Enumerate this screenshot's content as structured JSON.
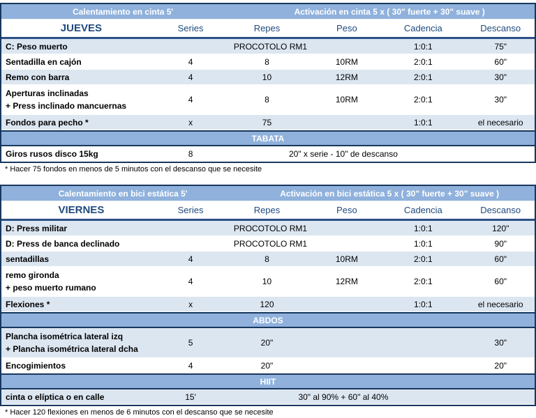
{
  "colors": {
    "band_blue": "#8fb1dc",
    "row_stripe": "#dce6f1",
    "header_text_blue": "#1f497d",
    "border_dark_navy": "#17375d"
  },
  "columns": [
    "Series",
    "Repes",
    "Peso",
    "Cadencia",
    "Descanso"
  ],
  "tables": [
    {
      "warmup": "Calentamiento en cinta 5'",
      "activation": "Activación en cinta 5 x ( 30\" fuerte + 30\" suave )",
      "day": "JUEVES",
      "rows": [
        {
          "name": [
            "C: Peso muerto"
          ],
          "stripe": true,
          "cells": [
            {
              "span": 3,
              "text": "PROCOTOLO RM1"
            },
            {
              "span": 1,
              "text": "1:0:1"
            },
            {
              "span": 1,
              "text": "75\""
            }
          ]
        },
        {
          "name": [
            "Sentadilla en cajón"
          ],
          "stripe": false,
          "cells": [
            {
              "span": 1,
              "text": "4"
            },
            {
              "span": 1,
              "text": "8"
            },
            {
              "span": 1,
              "text": "10RM"
            },
            {
              "span": 1,
              "text": "2:0:1"
            },
            {
              "span": 1,
              "text": "60\""
            }
          ]
        },
        {
          "name": [
            "Remo con barra"
          ],
          "stripe": true,
          "cells": [
            {
              "span": 1,
              "text": "4"
            },
            {
              "span": 1,
              "text": "10"
            },
            {
              "span": 1,
              "text": "12RM"
            },
            {
              "span": 1,
              "text": "2:0:1"
            },
            {
              "span": 1,
              "text": "30\""
            }
          ]
        },
        {
          "name": [
            "Aperturas inclinadas",
            "+ Press inclinado mancuernas"
          ],
          "stripe": false,
          "tall": true,
          "cells": [
            {
              "span": 1,
              "text": "4"
            },
            {
              "span": 1,
              "text": "8"
            },
            {
              "span": 1,
              "text": "10RM"
            },
            {
              "span": 1,
              "text": "2:0:1"
            },
            {
              "span": 1,
              "text": "30\""
            }
          ]
        },
        {
          "name": [
            "Fondos para pecho *"
          ],
          "stripe": true,
          "cells": [
            {
              "span": 1,
              "text": "x"
            },
            {
              "span": 1,
              "text": "75"
            },
            {
              "span": 1,
              "text": ""
            },
            {
              "span": 1,
              "text": "1:0:1"
            },
            {
              "span": 1,
              "text": "el necesario"
            }
          ]
        },
        {
          "band": "TABATA"
        },
        {
          "name": [
            "Giros rusos disco 15kg"
          ],
          "stripe": false,
          "cells": [
            {
              "span": 1,
              "text": "8"
            },
            {
              "span": 3,
              "text": "20\" x serie - 10\" de descanso"
            },
            {
              "span": 1,
              "text": ""
            }
          ]
        }
      ],
      "footnote": "* Hacer 75 fondos en menos de 5 minutos con el descanso que se necesite"
    },
    {
      "warmup": "Calentamiento en bici estática 5'",
      "activation": "Activación en bici estática 5 x ( 30\" fuerte + 30\" suave )",
      "day": "VIERNES",
      "rows": [
        {
          "name": [
            "D: Press militar"
          ],
          "stripe": true,
          "cells": [
            {
              "span": 3,
              "text": "PROCOTOLO RM1"
            },
            {
              "span": 1,
              "text": "1:0:1"
            },
            {
              "span": 1,
              "text": "120\""
            }
          ]
        },
        {
          "name": [
            "D: Press de banca declinado"
          ],
          "stripe": false,
          "cells": [
            {
              "span": 3,
              "text": "PROCOTOLO RM1"
            },
            {
              "span": 1,
              "text": "1:0:1"
            },
            {
              "span": 1,
              "text": "90\""
            }
          ]
        },
        {
          "name": [
            "sentadillas"
          ],
          "stripe": true,
          "cells": [
            {
              "span": 1,
              "text": "4"
            },
            {
              "span": 1,
              "text": "8"
            },
            {
              "span": 1,
              "text": "10RM"
            },
            {
              "span": 1,
              "text": "2:0:1"
            },
            {
              "span": 1,
              "text": "60\""
            }
          ]
        },
        {
          "name": [
            "remo gironda",
            "+ peso muerto rumano"
          ],
          "stripe": false,
          "tall": true,
          "cells": [
            {
              "span": 1,
              "text": "4"
            },
            {
              "span": 1,
              "text": "10"
            },
            {
              "span": 1,
              "text": "12RM"
            },
            {
              "span": 1,
              "text": "2:0:1"
            },
            {
              "span": 1,
              "text": "60\""
            }
          ]
        },
        {
          "name": [
            "Flexiones *"
          ],
          "stripe": true,
          "cells": [
            {
              "span": 1,
              "text": "x"
            },
            {
              "span": 1,
              "text": "120"
            },
            {
              "span": 1,
              "text": ""
            },
            {
              "span": 1,
              "text": "1:0:1"
            },
            {
              "span": 1,
              "text": "el necesario"
            }
          ]
        },
        {
          "band": "ABDOS"
        },
        {
          "name": [
            "Plancha isométrica lateral izq",
            "+ Plancha isométrica lateral dcha"
          ],
          "stripe": true,
          "tall": true,
          "cells": [
            {
              "span": 1,
              "text": "5"
            },
            {
              "span": 1,
              "text": "20\""
            },
            {
              "span": 1,
              "text": ""
            },
            {
              "span": 1,
              "text": ""
            },
            {
              "span": 1,
              "text": "30\""
            }
          ]
        },
        {
          "name": [
            "Encogimientos"
          ],
          "stripe": false,
          "cells": [
            {
              "span": 1,
              "text": "4"
            },
            {
              "span": 1,
              "text": "20\""
            },
            {
              "span": 1,
              "text": ""
            },
            {
              "span": 1,
              "text": ""
            },
            {
              "span": 1,
              "text": "20\""
            }
          ]
        },
        {
          "band": "HIIT"
        },
        {
          "name": [
            "cinta o elíptica o en calle"
          ],
          "stripe": true,
          "cells": [
            {
              "span": 1,
              "text": "15'"
            },
            {
              "span": 3,
              "text": "30\" al 90% + 60\" al 40%"
            },
            {
              "span": 1,
              "text": ""
            }
          ]
        }
      ],
      "footnote": "* Hacer 120 flexiones en menos de 6 minutos con el descanso que se necesite"
    }
  ]
}
